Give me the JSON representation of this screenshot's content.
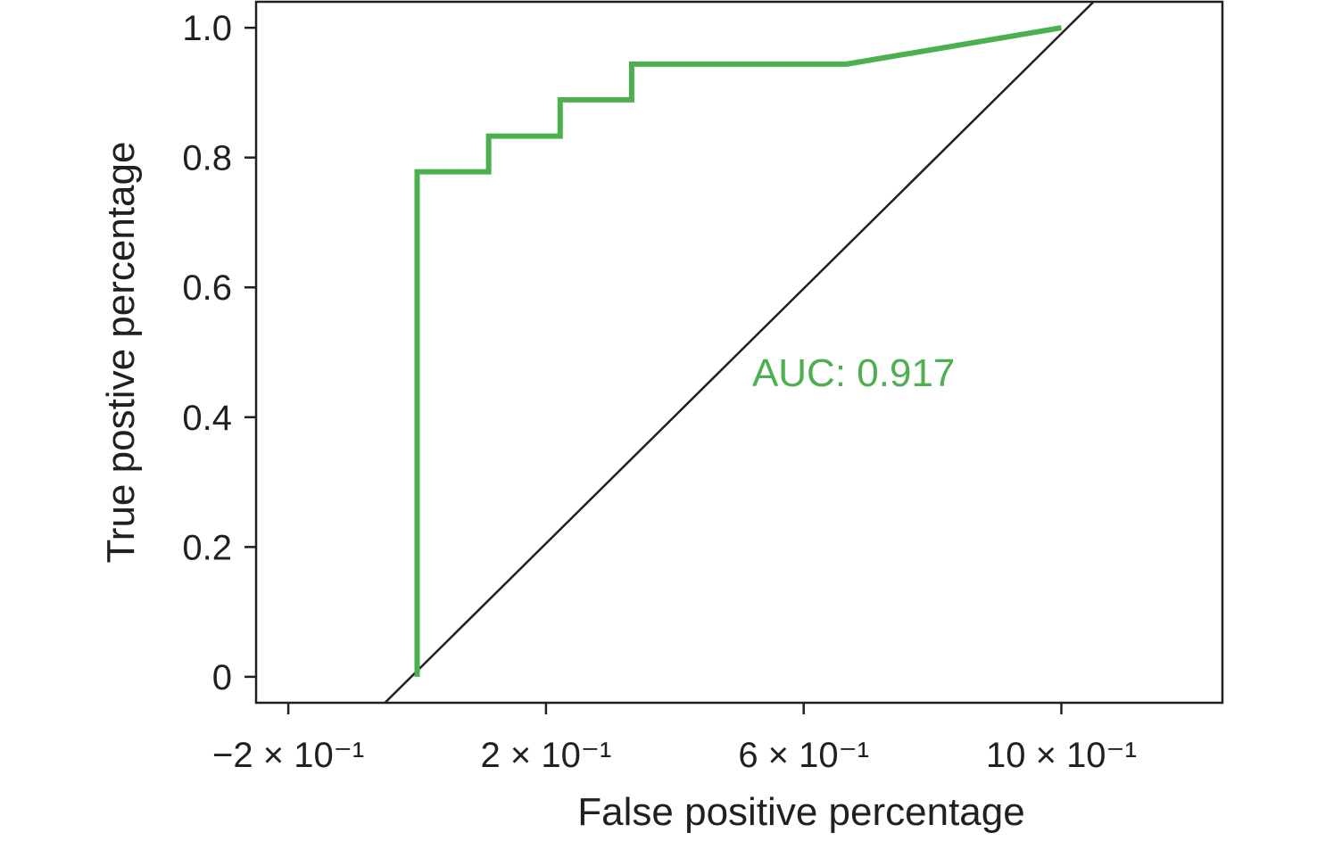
{
  "chart_data": {
    "type": "line",
    "xlabel": "False positive percentage",
    "ylabel": "True postive percentage",
    "xlim": [
      -0.25,
      1.25
    ],
    "ylim": [
      -0.04,
      1.04
    ],
    "x_ticks": [
      {
        "value": -0.2,
        "label": "−2 × 10⁻¹"
      },
      {
        "value": 0.2,
        "label": "2 × 10⁻¹"
      },
      {
        "value": 0.6,
        "label": "6 × 10⁻¹"
      },
      {
        "value": 1.0,
        "label": "10 × 10⁻¹"
      }
    ],
    "y_ticks": [
      {
        "value": 0,
        "label": "0"
      },
      {
        "value": 0.2,
        "label": "0.2"
      },
      {
        "value": 0.4,
        "label": "0.4"
      },
      {
        "value": 0.6,
        "label": "0.6"
      },
      {
        "value": 0.8,
        "label": "0.8"
      },
      {
        "value": 1.0,
        "label": "1.0"
      }
    ],
    "grid": false,
    "series": [
      {
        "color": "#4caf50",
        "x": [
          0.0,
          0.0,
          0.111,
          0.111,
          0.222,
          0.222,
          0.333,
          0.333,
          0.667,
          1.0
        ],
        "y": [
          0.0,
          0.778,
          0.778,
          0.833,
          0.833,
          0.889,
          0.889,
          0.944,
          0.944,
          1.0
        ]
      }
    ],
    "reference_line": {
      "color": "#231f20",
      "x": [
        -0.05,
        1.05
      ],
      "y": [
        -0.04,
        1.04
      ]
    },
    "annotation": {
      "text": "AUC: 0.917",
      "color": "#4caf50",
      "x": 0.52,
      "y": 0.47
    }
  }
}
